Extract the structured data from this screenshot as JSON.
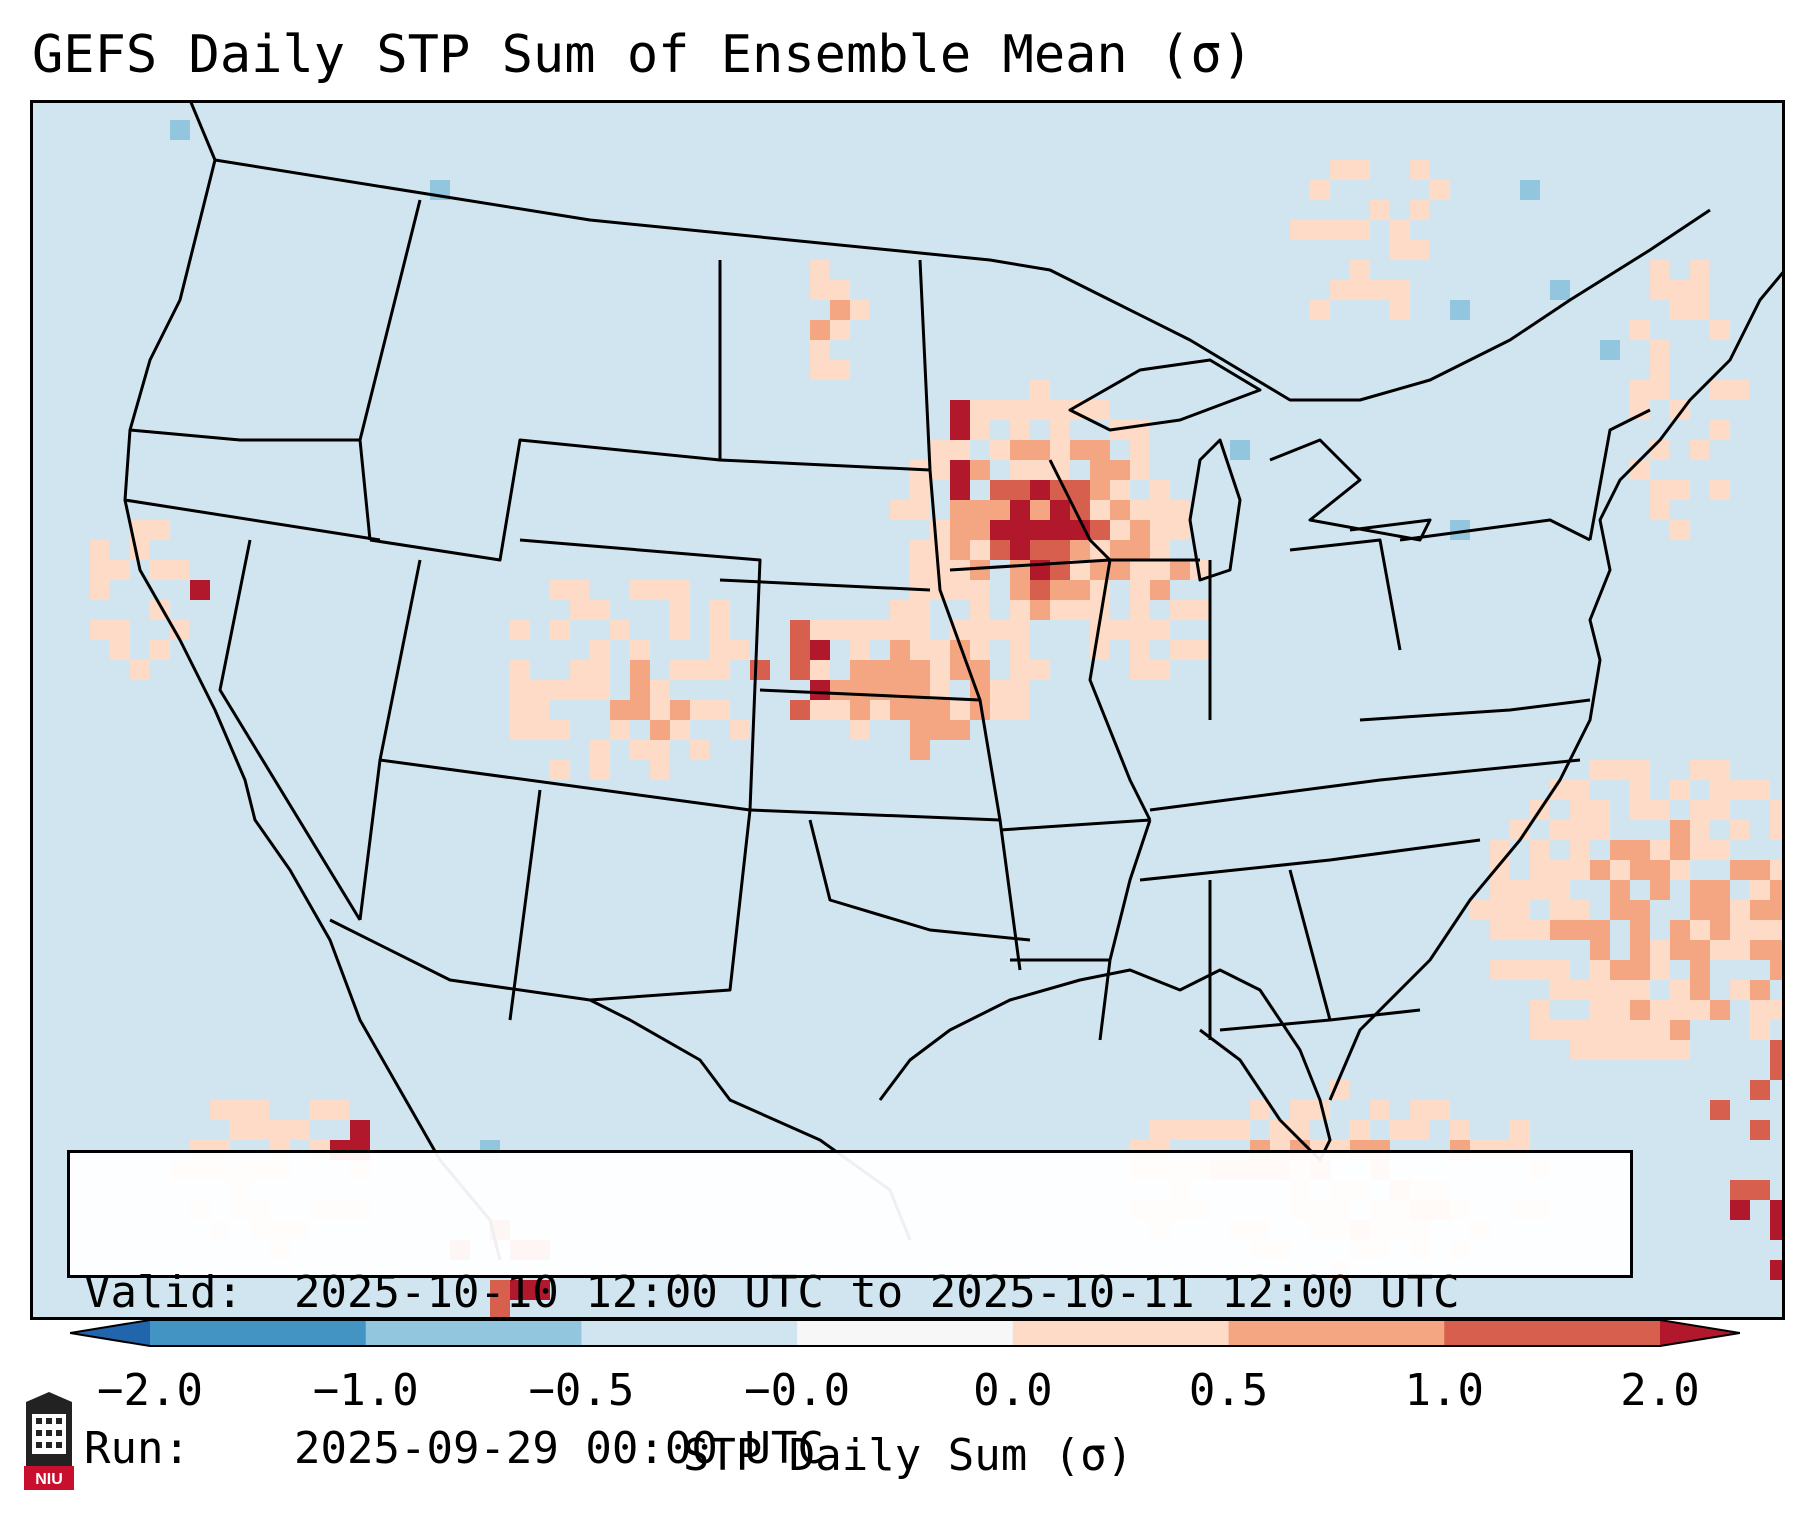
{
  "title": "GEFS Daily STP Sum of Ensemble Mean (σ)",
  "info_box": {
    "valid_label": "Valid:",
    "valid_value": "2025-10-10 12:00 UTC to 2025-10-11 12:00 UTC",
    "run_label": "Run:",
    "run_value": "2025-09-29 00:00 UTC"
  },
  "colorbar": {
    "label": "STP Daily Sum (σ)",
    "ticks": [
      "−2.0",
      "−1.0",
      "−0.5",
      "−0.0",
      "0.0",
      "0.5",
      "1.0",
      "2.0"
    ],
    "bins": [
      {
        "from": -2.0,
        "to": -1.0,
        "color": "#4393c3"
      },
      {
        "from": -1.0,
        "to": -0.5,
        "color": "#92c5de"
      },
      {
        "from": -0.5,
        "to": -0.0,
        "color": "#d1e5f0"
      },
      {
        "from": -0.0,
        "to": 0.0,
        "color": "#f7f7f7"
      },
      {
        "from": 0.0,
        "to": 0.5,
        "color": "#fddbc7"
      },
      {
        "from": 0.5,
        "to": 1.0,
        "color": "#f4a582"
      },
      {
        "from": 1.0,
        "to": 2.0,
        "color": "#d6604d"
      }
    ],
    "under_color": "#2166ac",
    "over_color": "#b2182b"
  },
  "map_colors": {
    "background": "#d1e5f0",
    "low": "#fddbc7",
    "mid": "#f4a582",
    "high": "#d6604d",
    "extreme": "#b2182b",
    "neg": "#92c5de"
  },
  "logo": {
    "text": "NIU",
    "color": "#c8102e"
  }
}
